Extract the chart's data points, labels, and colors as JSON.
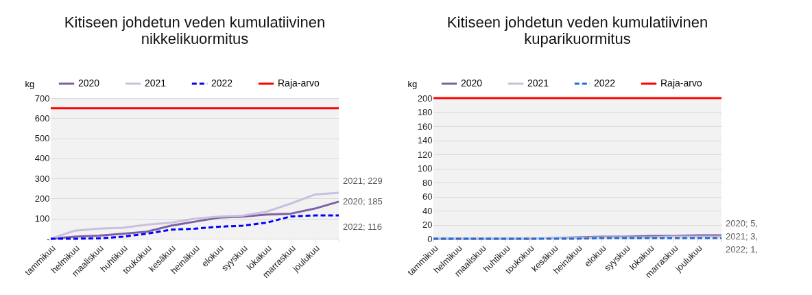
{
  "chart_data": [
    {
      "type": "line",
      "title": "Kitiseen johdetun veden kumulatiivinen nikkelikuormitus",
      "ylabel": "kg",
      "categories": [
        "tammikuu",
        "helmikuu",
        "maaliskuu",
        "huhtikuu",
        "toukokuu",
        "kesäkuu",
        "heinäkuu",
        "elokuu",
        "syyskuu",
        "lokakuu",
        "marraskuu",
        "joulukuu",
        null
      ],
      "ylim": [
        0,
        700
      ],
      "yticks": [
        {
          "value": 0,
          "label": "-"
        },
        100,
        200,
        300,
        400,
        500,
        600,
        700
      ],
      "grid": "y",
      "legend": "top",
      "series": [
        {
          "name": "2020",
          "color": "#7b61a3",
          "values": [
            0,
            10,
            15,
            25,
            35,
            65,
            85,
            105,
            110,
            120,
            125,
            150,
            185
          ],
          "value_labels": [
            null,
            null,
            null,
            null,
            null,
            null,
            null,
            null,
            null,
            null,
            null,
            null,
            "2020;  185"
          ]
        },
        {
          "name": "2021",
          "color": "#c9c0de",
          "values": [
            0,
            40,
            50,
            55,
            70,
            80,
            100,
            110,
            115,
            135,
            175,
            220,
            229
          ],
          "value_labels": [
            null,
            null,
            null,
            null,
            null,
            null,
            null,
            null,
            null,
            null,
            null,
            null,
            "2021;  229"
          ]
        },
        {
          "name": "2022",
          "color": "#0000ff",
          "line_style": "dashed",
          "values": [
            0,
            0,
            2,
            10,
            25,
            45,
            50,
            60,
            65,
            80,
            111,
            116,
            116
          ],
          "value_labels": [
            null,
            null,
            null,
            null,
            null,
            null,
            null,
            null,
            null,
            null,
            null,
            null,
            "2022; 116"
          ]
        },
        {
          "name": "Raja-arvo",
          "color": "#ff0000",
          "values": [
            650,
            650,
            650,
            650,
            650,
            650,
            650,
            650,
            650,
            650,
            650,
            650,
            650
          ]
        }
      ]
    },
    {
      "type": "line",
      "title": "Kitiseen johdetun veden kumulatiivinen kuparikuormitus",
      "ylabel": "kg",
      "categories": [
        "tammikuu",
        "helmikuu",
        "maaliskuu",
        "huhtikuu",
        "toukokuu",
        "kesäkuu",
        "heinäkuu",
        "elokuu",
        "syyskuu",
        "lokakuu",
        "marraskuu",
        "joulukuu",
        null
      ],
      "ylim": [
        0,
        200
      ],
      "yticks": [
        0,
        20,
        40,
        60,
        80,
        100,
        120,
        140,
        160,
        180,
        200
      ],
      "grid": "y",
      "legend": "top",
      "series": [
        {
          "name": "2020",
          "color": "#7b61a3",
          "values": [
            0,
            0,
            0,
            0,
            0,
            1,
            2,
            3,
            3,
            4,
            4,
            5,
            5
          ],
          "value_labels": [
            null,
            null,
            null,
            null,
            null,
            null,
            null,
            null,
            null,
            null,
            null,
            null,
            "2020; 5,"
          ]
        },
        {
          "name": "2021",
          "color": "#c9c0de",
          "values": [
            0,
            0,
            0,
            0,
            0,
            1,
            1,
            2,
            2,
            2,
            3,
            3,
            3
          ],
          "value_labels": [
            null,
            null,
            null,
            null,
            null,
            null,
            null,
            null,
            null,
            null,
            null,
            null,
            "2021; 3,"
          ]
        },
        {
          "name": "2022",
          "color": "#1f6fd0",
          "line_style": "dashed",
          "values": [
            0,
            0,
            0,
            0,
            0,
            0,
            0,
            1,
            1,
            1,
            1,
            1,
            1
          ],
          "value_labels": [
            null,
            null,
            null,
            null,
            null,
            null,
            null,
            null,
            null,
            null,
            null,
            null,
            "2022; 1,"
          ]
        },
        {
          "name": "Raja-arvo",
          "color": "#ff0000",
          "values": [
            200,
            200,
            200,
            200,
            200,
            200,
            200,
            200,
            200,
            200,
            200,
            200,
            200
          ]
        }
      ]
    }
  ]
}
